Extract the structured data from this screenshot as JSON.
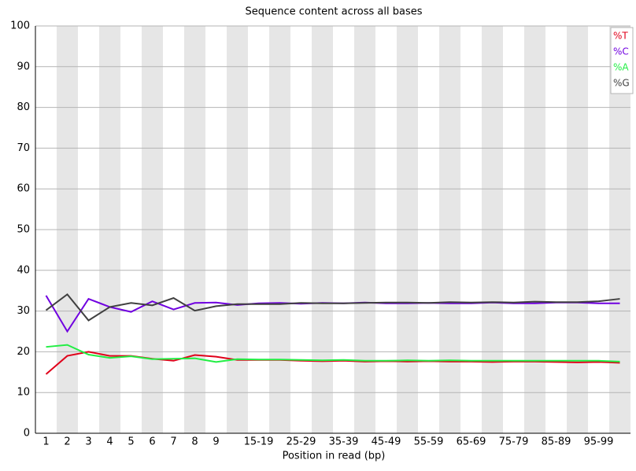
{
  "chart_data": {
    "type": "line",
    "title": "Sequence content across all bases",
    "x_label": "Position in read (bp)",
    "categories": [
      "1",
      "2",
      "3",
      "4",
      "5",
      "6",
      "7",
      "8",
      "9",
      null,
      "15-19",
      null,
      "25-29",
      null,
      "35-39",
      null,
      "45-49",
      null,
      "55-59",
      null,
      "65-69",
      null,
      "75-79",
      null,
      "85-89",
      null,
      "95-99",
      null
    ],
    "series": [
      {
        "name": "%T",
        "color": "#e0001a",
        "values": [
          14.5,
          19,
          20,
          19,
          19,
          18.3,
          17.8,
          19.2,
          18.8,
          18,
          18,
          18,
          17.8,
          17.7,
          17.8,
          17.6,
          17.7,
          17.6,
          17.7,
          17.6,
          17.6,
          17.5,
          17.6,
          17.6,
          17.5,
          17.4,
          17.5,
          17.3
        ]
      },
      {
        "name": "%C",
        "color": "#7000e0",
        "values": [
          33.8,
          25,
          33,
          31,
          29.8,
          32.4,
          30.4,
          32,
          32.1,
          31.5,
          31.9,
          32,
          31.8,
          32,
          31.9,
          32.1,
          31.9,
          31.9,
          32,
          31.9,
          31.9,
          32.1,
          31.9,
          31.9,
          32.1,
          32.1,
          31.9,
          31.9
        ]
      },
      {
        "name": "%A",
        "color": "#22ee44",
        "values": [
          21.2,
          21.7,
          19.3,
          18.5,
          18.9,
          18.2,
          18.3,
          18.4,
          17.5,
          18.2,
          18.1,
          18.1,
          18,
          17.9,
          18,
          17.8,
          17.8,
          17.9,
          17.8,
          17.9,
          17.8,
          17.8,
          17.8,
          17.8,
          17.8,
          17.8,
          17.8,
          17.6
        ]
      },
      {
        "name": "%G",
        "color": "#404040",
        "values": [
          30.2,
          34.1,
          27.7,
          31,
          32,
          31.4,
          33.2,
          30.1,
          31.2,
          31.7,
          31.7,
          31.7,
          32,
          31.9,
          31.9,
          32,
          32.1,
          32.1,
          32,
          32.2,
          32.1,
          32.2,
          32.1,
          32.3,
          32.2,
          32.2,
          32.4,
          33
        ]
      }
    ],
    "ylim": [
      0,
      100
    ],
    "yticks": [
      0,
      10,
      20,
      30,
      40,
      50,
      60,
      70,
      80,
      90,
      100
    ],
    "grid": true,
    "legend": "top-right"
  }
}
